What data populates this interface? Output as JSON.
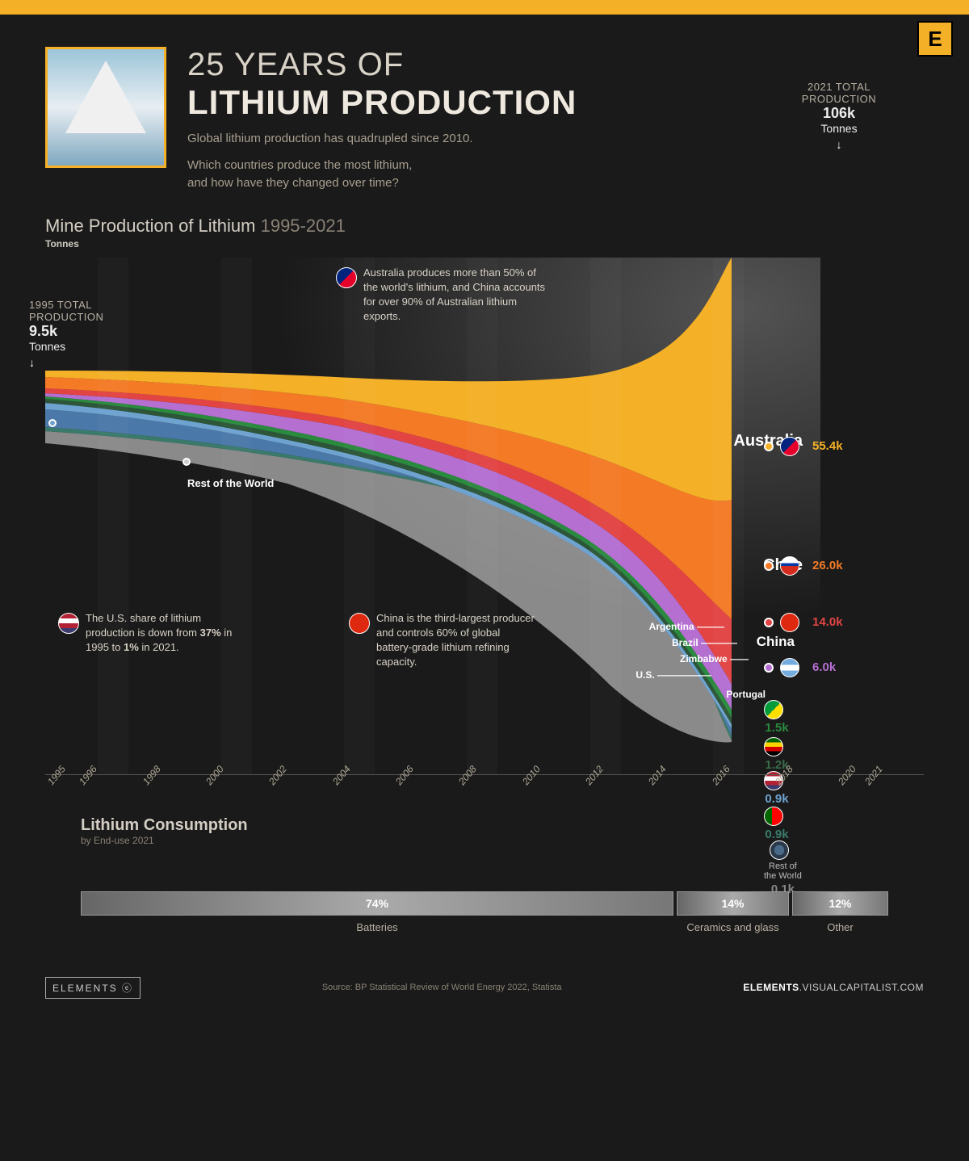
{
  "brand": {
    "badge": "E",
    "logo": "ELEMENTS",
    "url_prefix": "ELEMENTS",
    "url_suffix": ".VISUALCAPITALIST.COM"
  },
  "header": {
    "title_line1": "25 YEARS OF",
    "title_line2": "LITHIUM PRODUCTION",
    "subtitle1": "Global lithium production has quadrupled since 2010.",
    "subtitle2": "Which countries produce the most lithium,",
    "subtitle3": "and how have they changed over time?"
  },
  "callouts": {
    "y1995_label": "1995 TOTAL PRODUCTION",
    "y1995_value": "9.5k",
    "y1995_unit": "Tonnes",
    "y2021_label": "2021 TOTAL PRODUCTION",
    "y2021_value": "106k",
    "y2021_unit": "Tonnes"
  },
  "chart": {
    "section_title": "Mine Production of Lithium",
    "year_range": "1995-2021",
    "y_unit": "Tonnes",
    "x_years": [
      "1995",
      "1996",
      "1998",
      "2000",
      "2002",
      "2004",
      "2006",
      "2008",
      "2010",
      "2012",
      "2014",
      "2016",
      "2018",
      "2020",
      "2021"
    ],
    "background_color": "#1a1a1a",
    "countries": [
      {
        "name": "Australia",
        "value": "55.4k",
        "color": "#f4b026",
        "flag_bg": "linear-gradient(135deg,#00247d 50%,#e4002b 50%)"
      },
      {
        "name": "Chile",
        "value": "26.0k",
        "color": "#f47a26",
        "flag_bg": "linear-gradient(180deg,#fff 33%,#0039a6 33% 50%,#d52b1e 50%)"
      },
      {
        "name": "China",
        "value": "14.0k",
        "color": "#e24444",
        "flag_bg": "#de2910"
      },
      {
        "name": "Argentina",
        "value": "6.0k",
        "color": "#b56fd1",
        "flag_bg": "linear-gradient(180deg,#74acdf 33%,#fff 33% 66%,#74acdf 66%)"
      },
      {
        "name": "Brazil",
        "value": "1.5k",
        "color": "#2a8a3e",
        "flag_bg": "linear-gradient(135deg,#009b3a 50%,#fedf00 50%)"
      },
      {
        "name": "Zimbabwe",
        "value": "1.2k",
        "color": "#3a6a48",
        "flag_bg": "linear-gradient(180deg,#006400 25%,#ffd200 25% 50%,#d40000 50% 75%,#000 75%)"
      },
      {
        "name": "U.S.",
        "value": "0.9k",
        "color": "#6ea2cf",
        "flag_bg": "linear-gradient(180deg,#b22234 25%,#fff 25% 50%,#b22234 50% 75%,#3c3b6e 75%)"
      },
      {
        "name": "Portugal",
        "value": "0.9k",
        "color": "#3a7a6a",
        "flag_bg": "linear-gradient(90deg,#006600 40%,#ff0000 40%)"
      },
      {
        "name": "Rest of the World",
        "value": "0.1k",
        "color": "#888",
        "flag_bg": "radial-gradient(circle,#4a6a8a 40%,#2a3a4a 40%)"
      }
    ],
    "minor_labels": [
      "Argentina",
      "Brazil",
      "Zimbabwe",
      "U.S.",
      "Portugal"
    ],
    "rest_label": "Rest of the World"
  },
  "annotations": {
    "australia": "Australia produces more than 50% of the world's lithium, and China accounts for over 90% of Australian lithium exports.",
    "us": "The U.S. share of lithium production is down from 37% in 1995 to 1% in 2021.",
    "china": "China is the third-largest producer and controls 60% of global battery-grade lithium refining capacity."
  },
  "consumption": {
    "title": "Lithium Consumption",
    "subtitle": "by End-use 2021",
    "segments": [
      {
        "label": "Batteries",
        "pct": "74%",
        "width": 74
      },
      {
        "label": "Ceramics and glass",
        "pct": "14%",
        "width": 14
      },
      {
        "label": "Other",
        "pct": "12%",
        "width": 12
      }
    ]
  },
  "source": "Source: BP Statistical Review of World Energy 2022,  Statista"
}
